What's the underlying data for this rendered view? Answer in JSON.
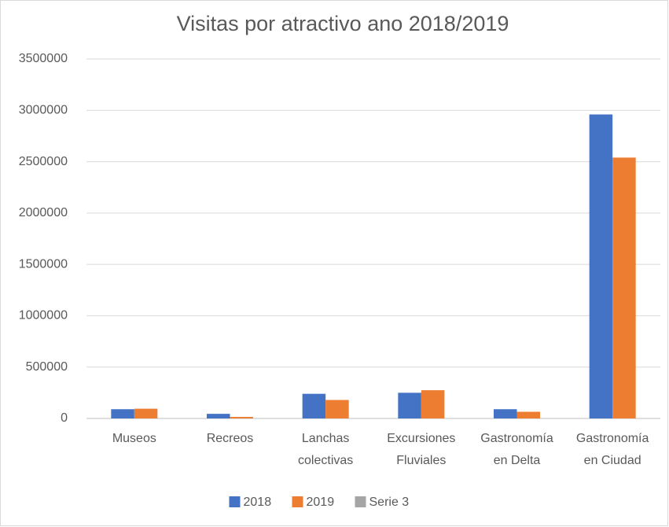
{
  "chart_data": {
    "type": "bar",
    "title": "Visitas por atractivo ano 2018/2019",
    "categories": [
      "Museos",
      "Recreos",
      "Lanchas colectivas",
      "Excursiones Fluviales",
      "Gastronomía en Delta",
      "Gastronomía en Ciudad"
    ],
    "series": [
      {
        "name": "2018",
        "color": "#4472c4",
        "values": [
          90000,
          45000,
          240000,
          250000,
          90000,
          2960000
        ]
      },
      {
        "name": "2019",
        "color": "#ed7d31",
        "values": [
          95000,
          15000,
          180000,
          275000,
          65000,
          2540000
        ]
      },
      {
        "name": "Serie 3",
        "color": "#a5a5a5",
        "values": [
          null,
          null,
          null,
          null,
          null,
          null
        ]
      }
    ],
    "ylim": [
      0,
      3500000
    ],
    "yticks": [
      0,
      500000,
      1000000,
      1500000,
      2000000,
      2500000,
      3000000,
      3500000
    ],
    "grid": true,
    "legend": "bottom"
  }
}
